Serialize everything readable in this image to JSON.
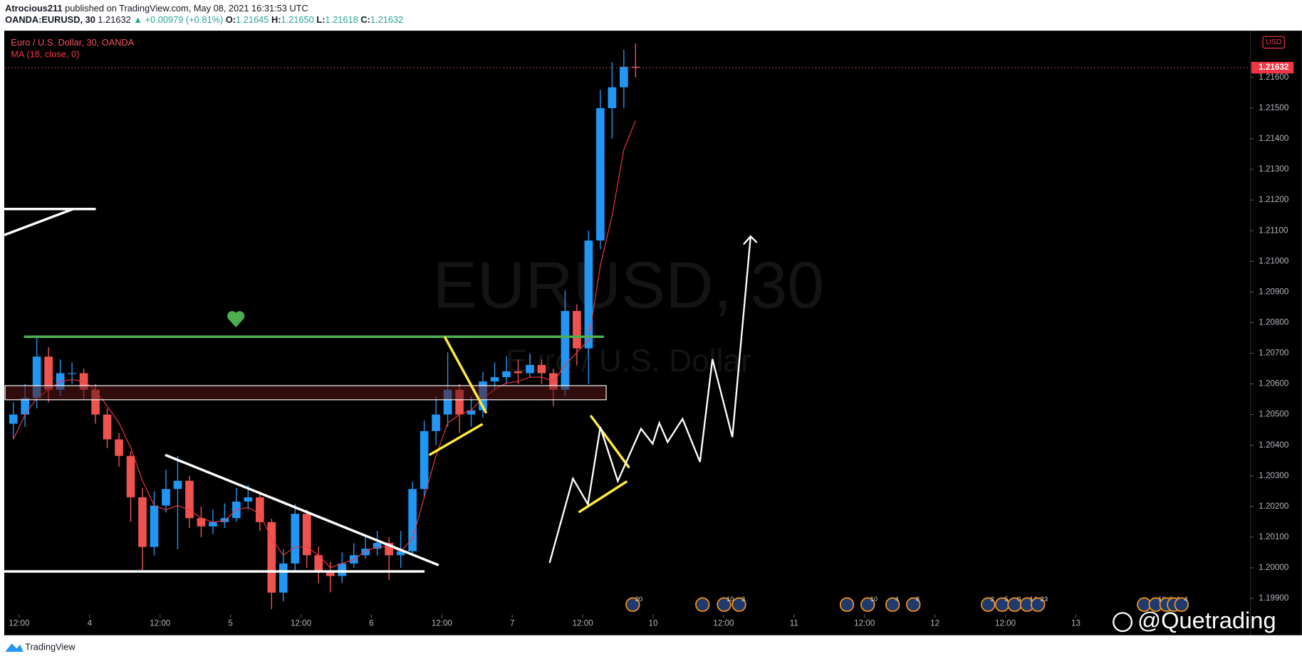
{
  "header": {
    "publisher": "Atrocious211",
    "published": "published on TradingView.com, May 08, 2021 16:31:53 UTC",
    "symbol": "OANDA:EURUSD, 30",
    "last": "1.21632",
    "change": "▲ +0.00979 (+0.81%)",
    "o_label": "O:",
    "o": "1.21645",
    "h_label": "H:",
    "h": "1.21650",
    "l_label": "L:",
    "l": "1.21618",
    "c_label": "C:",
    "c": "1.21632"
  },
  "chart_data": {
    "type": "candlestick",
    "title": "Euro / U.S. Dollar, 30, OANDA",
    "watermark": "EURUSD, 30",
    "watermark_subtitle": "Euro / U.S. Dollar",
    "currency": "USD",
    "x": [
      -13,
      -11,
      -9,
      -7,
      -5,
      -3,
      -1,
      1,
      3,
      5,
      7,
      9,
      11,
      13,
      15,
      17,
      19,
      21,
      23,
      25,
      27,
      29,
      31,
      33,
      35,
      37,
      39,
      41,
      43,
      45,
      47,
      49,
      51,
      53,
      55,
      57,
      59,
      61,
      63,
      65,
      67,
      69,
      71,
      73,
      75,
      77,
      79,
      81,
      83,
      85,
      87,
      89,
      91,
      93
    ],
    "series": [
      {
        "up_color": "#2196f3",
        "down_color": "#ef5350",
        "open": [
          1.2047,
          1.205,
          1.20554,
          1.20689,
          1.20581,
          1.20635,
          1.20635,
          1.20581,
          1.205,
          1.20419,
          1.20365,
          1.2023,
          1.20068,
          1.20203,
          1.20257,
          1.20284,
          1.20162,
          1.20135,
          1.20149,
          1.20162,
          1.20216,
          1.2023,
          1.20149,
          1.19919,
          1.20014,
          1.20176,
          1.20041,
          1.19986,
          1.19973,
          1.20014,
          1.20041,
          1.20062,
          1.20081,
          1.20041,
          1.20054,
          1.20257,
          1.20446,
          1.205,
          1.20581,
          1.205,
          1.20514,
          1.20608,
          1.20622,
          1.20641,
          1.20635,
          1.20662,
          1.20635,
          1.20581,
          1.20838,
          1.20716,
          1.21068,
          1.215,
          1.21568,
          1.21635
        ],
        "high": [
          1.2054,
          1.206,
          1.20757,
          1.2072,
          1.2068,
          1.2067,
          1.2065,
          1.206,
          1.2052,
          1.2044,
          1.2038,
          1.2026,
          1.2025,
          1.2032,
          1.20365,
          1.203,
          1.202,
          1.2019,
          1.2021,
          1.2026,
          1.2027,
          1.2025,
          1.2016,
          1.2006,
          1.20208,
          1.2019,
          1.2007,
          1.2002,
          1.2005,
          1.2008,
          1.201,
          1.2012,
          1.201,
          1.2012,
          1.2028,
          1.2048,
          1.2056,
          1.20703,
          1.206,
          1.2056,
          1.2064,
          1.2067,
          1.2069,
          1.2068,
          1.207,
          1.2068,
          1.2065,
          1.20905,
          1.2086,
          1.211,
          1.2156,
          1.2165,
          1.2169,
          1.21711
        ],
        "low": [
          1.2042,
          1.2046,
          1.2052,
          1.2054,
          1.2056,
          1.206,
          1.2055,
          1.2047,
          1.2039,
          1.2033,
          1.2015,
          1.19992,
          1.2004,
          1.2018,
          1.2006,
          1.2013,
          1.201,
          1.2011,
          1.2013,
          1.2015,
          1.2019,
          1.2012,
          1.19865,
          1.1989,
          1.1999,
          1.2,
          1.1995,
          1.1992,
          1.1995,
          1.2,
          1.2003,
          1.2004,
          1.1996,
          1.2,
          1.2004,
          1.2023,
          1.204,
          1.2046,
          1.2044,
          1.2046,
          1.2049,
          1.2058,
          1.206,
          1.206,
          1.2062,
          1.206,
          1.20527,
          1.2056,
          1.2066,
          1.206,
          1.2104,
          1.214,
          1.215,
          1.216
        ],
        "close": [
          1.205,
          1.20554,
          1.20689,
          1.20581,
          1.20635,
          1.20635,
          1.20581,
          1.205,
          1.20419,
          1.20365,
          1.2023,
          1.20068,
          1.20203,
          1.20257,
          1.20284,
          1.20162,
          1.20135,
          1.20149,
          1.20162,
          1.20216,
          1.2023,
          1.20149,
          1.19919,
          1.20014,
          1.20176,
          1.20041,
          1.19986,
          1.19973,
          1.20014,
          1.20041,
          1.20062,
          1.20081,
          1.20041,
          1.20054,
          1.20257,
          1.20446,
          1.205,
          1.20581,
          1.205,
          1.20514,
          1.20608,
          1.20622,
          1.20641,
          1.20635,
          1.20662,
          1.20635,
          1.20581,
          1.20838,
          1.20716,
          1.21068,
          1.215,
          1.21568,
          1.21635,
          1.21632
        ]
      },
      {
        "name": "MA (18, close, 0)",
        "color": "#f23645",
        "values": [
          1.20419,
          1.205,
          1.20554,
          1.20581,
          1.20608,
          1.20614,
          1.20608,
          1.20581,
          1.20527,
          1.20473,
          1.20392,
          1.20284,
          1.20203,
          1.20189,
          1.20203,
          1.20189,
          1.20162,
          1.20149,
          1.20154,
          1.20189,
          1.20197,
          1.20176,
          1.20095,
          1.20041,
          1.20068,
          1.20068,
          1.20041,
          1.2,
          1.20014,
          1.20027,
          1.20054,
          1.20068,
          1.20068,
          1.20054,
          1.20095,
          1.2023,
          1.20365,
          1.20473,
          1.205,
          1.20514,
          1.20554,
          1.20581,
          1.20603,
          1.20608,
          1.20622,
          1.20622,
          1.20608,
          1.20662,
          1.20703,
          1.20743,
          1.20986,
          1.21149,
          1.21365,
          1.21459
        ]
      }
    ],
    "xlim": [
      -14.4,
      197.6
    ],
    "xticks": [
      {
        "value": -12,
        "label": "12:00"
      },
      {
        "value": 0,
        "label": "4"
      },
      {
        "value": 12,
        "label": "12:00"
      },
      {
        "value": 24,
        "label": "5"
      },
      {
        "value": 36,
        "label": "12:00"
      },
      {
        "value": 48,
        "label": "6"
      },
      {
        "value": 60,
        "label": "12:00"
      },
      {
        "value": 72,
        "label": "7"
      },
      {
        "value": 84,
        "label": "12:00"
      },
      {
        "value": 96,
        "label": "10"
      },
      {
        "value": 108,
        "label": "12:00"
      },
      {
        "value": 120,
        "label": "11"
      },
      {
        "value": 132,
        "label": "12:00"
      },
      {
        "value": 144,
        "label": "12"
      },
      {
        "value": 156,
        "label": "12:00"
      },
      {
        "value": 168,
        "label": "13"
      }
    ],
    "ylim": [
      1.1985,
      1.2175
    ],
    "yticks": [
      {
        "value": 1.199,
        "label": "1.19900"
      },
      {
        "value": 1.2,
        "label": "1.20000"
      },
      {
        "value": 1.201,
        "label": "1.20100"
      },
      {
        "value": 1.202,
        "label": "1.20200"
      },
      {
        "value": 1.203,
        "label": "1.20300"
      },
      {
        "value": 1.204,
        "label": "1.20400"
      },
      {
        "value": 1.205,
        "label": "1.20500"
      },
      {
        "value": 1.206,
        "label": "1.20600"
      },
      {
        "value": 1.207,
        "label": "1.20700"
      },
      {
        "value": 1.208,
        "label": "1.20800"
      },
      {
        "value": 1.209,
        "label": "1.20900"
      },
      {
        "value": 1.21,
        "label": "1.21000"
      },
      {
        "value": 1.211,
        "label": "1.21100"
      },
      {
        "value": 1.212,
        "label": "1.21200"
      },
      {
        "value": 1.213,
        "label": "1.21300"
      },
      {
        "value": 1.214,
        "label": "1.21400"
      },
      {
        "value": 1.215,
        "label": "1.21500"
      },
      {
        "value": 1.216,
        "label": "1.21600"
      }
    ],
    "last_price": {
      "value": 1.21632,
      "label": "1.21632"
    },
    "grid": false
  },
  "events": [
    "20",
    "10",
    "3",
    "10",
    "4",
    "8",
    "2",
    "5",
    "0",
    "14",
    "23",
    "10",
    "2",
    "1",
    "4"
  ],
  "footer": {
    "brand": "TradingView",
    "handle": "@Quetrading"
  }
}
